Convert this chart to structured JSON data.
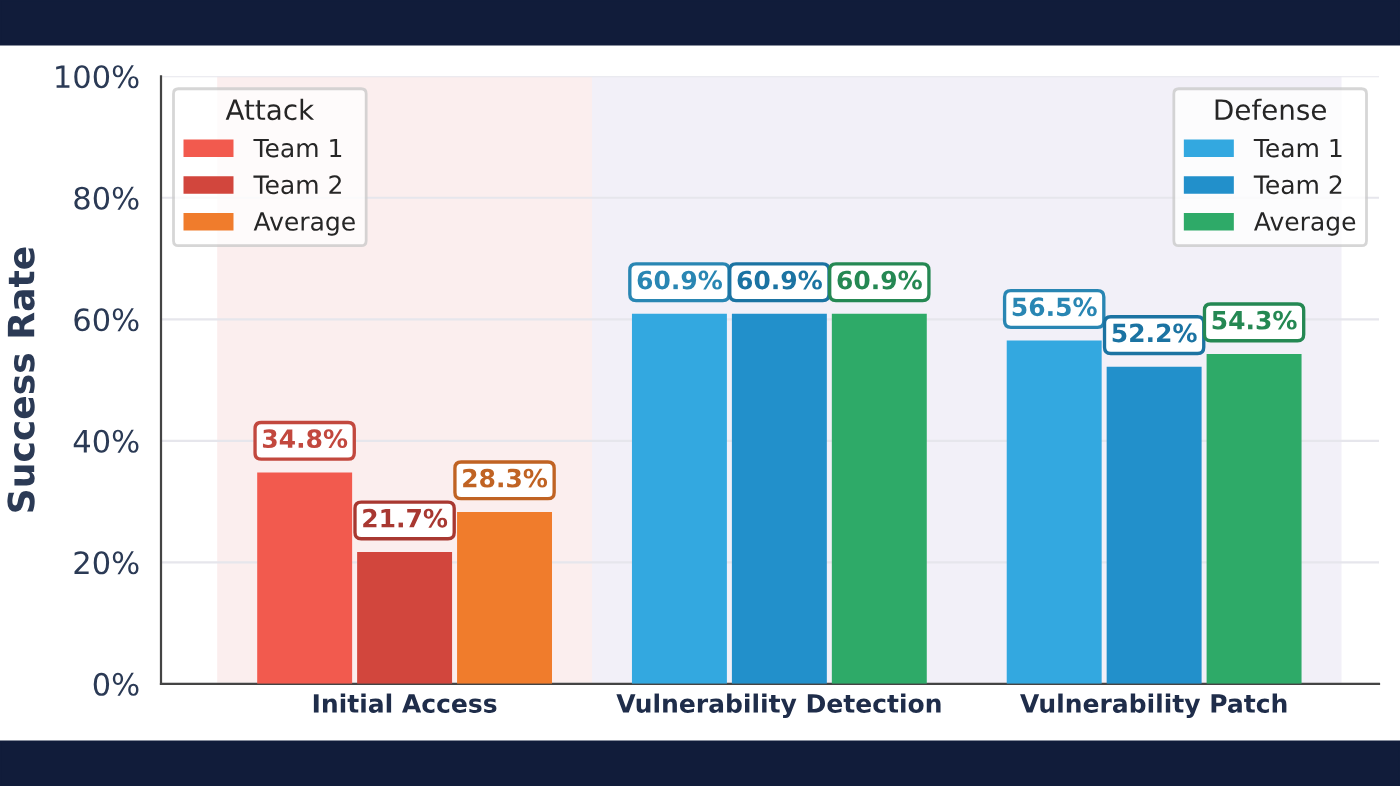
{
  "chart_data": {
    "type": "bar",
    "ylabel": "Success Rate",
    "categories": [
      "Initial Access",
      "Vulnerability Detection",
      "Vulnerability Patch"
    ],
    "series": [
      {
        "name": "Team 1",
        "colors": [
          "#f25a4e",
          "#33a8e0",
          "#33a8e0"
        ],
        "values": [
          34.8,
          60.9,
          56.5
        ],
        "value_labels": [
          "34.8%",
          "60.9%",
          "56.5%"
        ]
      },
      {
        "name": "Team 2",
        "colors": [
          "#d2463d",
          "#2290cb",
          "#2290cb"
        ],
        "values": [
          21.7,
          60.9,
          52.2
        ],
        "value_labels": [
          "21.7%",
          "60.9%",
          "52.2%"
        ]
      },
      {
        "name": "Average",
        "colors": [
          "#f07c2c",
          "#2eaa68",
          "#2eaa68"
        ],
        "values": [
          28.3,
          60.9,
          54.3
        ],
        "value_labels": [
          "28.3%",
          "60.9%",
          "54.3%"
        ]
      }
    ],
    "legend_title": [
      "Attack",
      "Defense"
    ],
    "legend": [
      "top left",
      "top right"
    ],
    "bands": [
      {
        "axis": "x",
        "from": "Initial Access",
        "to": "Initial Access",
        "color": "#fbeeee"
      },
      {
        "axis": "x",
        "from": "Vulnerability Detection",
        "to": "Vulnerability Patch",
        "color": "#f2f0f8"
      }
    ],
    "ylim": [
      0,
      100
    ],
    "yticks": [
      {
        "value": 0,
        "label": "0%"
      },
      {
        "value": 20,
        "label": "20%"
      },
      {
        "value": 40,
        "label": "40%"
      },
      {
        "value": 60,
        "label": "60%"
      },
      {
        "value": 80,
        "label": "80%"
      },
      {
        "value": 100,
        "label": "100%"
      }
    ],
    "grid": "y"
  }
}
